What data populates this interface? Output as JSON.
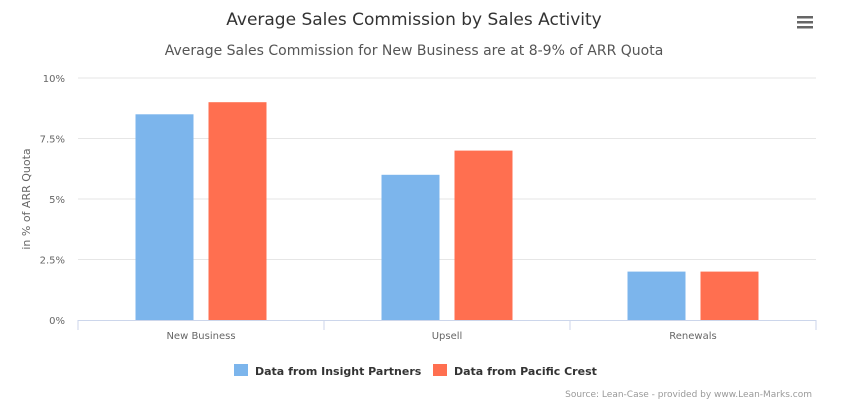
{
  "chart_data": {
    "type": "bar",
    "title": "Average Sales Commission by Sales Activity",
    "subtitle": "Average Sales Commission for New Business are at 8-9% of ARR Quota",
    "xlabel": "",
    "ylabel": "in % of ARR Quota",
    "ylim": [
      0,
      10
    ],
    "yticks": [
      0,
      2.5,
      5,
      7.5,
      10
    ],
    "ytick_labels": [
      "0%",
      "2.5%",
      "5%",
      "7.5%",
      "10%"
    ],
    "grid": true,
    "categories": [
      "New Business",
      "Upsell",
      "Renewals"
    ],
    "series": [
      {
        "name": "Data from Insight Partners",
        "values": [
          8.5,
          6,
          2
        ],
        "color": "#7cb5ec"
      },
      {
        "name": "Data from Pacific Crest",
        "values": [
          9,
          7,
          2
        ],
        "color": "#ff6f50"
      }
    ],
    "legend_position": "bottom",
    "credits": "Source: Lean-Case - provided by www.Lean-Marks.com"
  },
  "menu": {
    "icon": "hamburger-menu-icon"
  }
}
